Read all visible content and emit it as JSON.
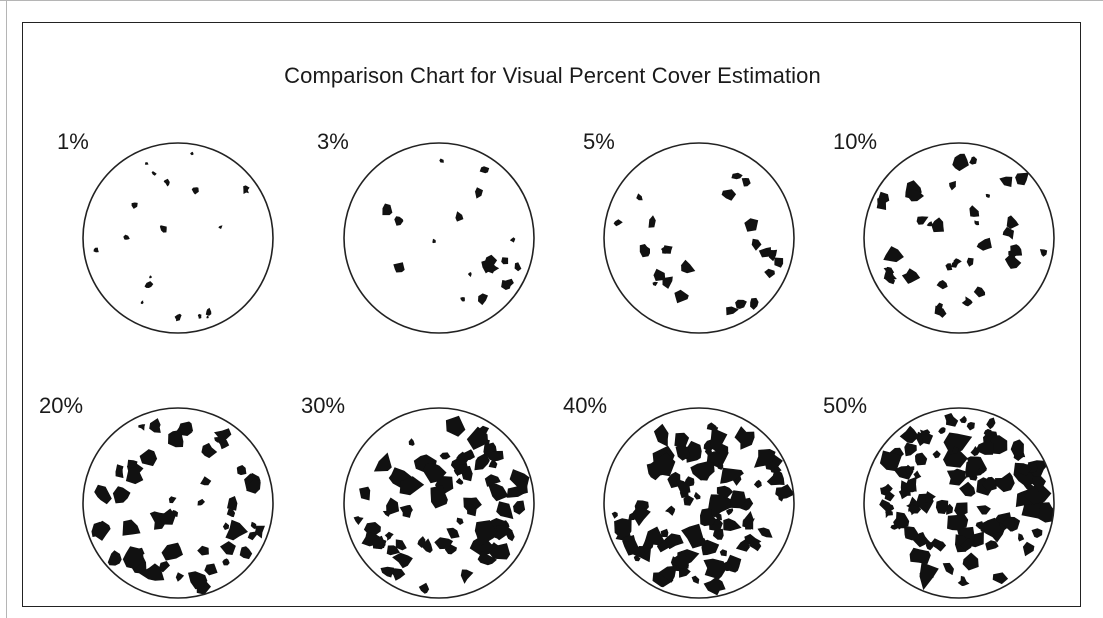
{
  "diagram": {
    "title": "Comparison Chart for Visual Percent Cover Estimation",
    "colors": {
      "patch": "#111111",
      "outline": "#222222",
      "background": "#ffffff"
    },
    "panels": [
      {
        "label": "1%",
        "percent": 1
      },
      {
        "label": "3%",
        "percent": 3
      },
      {
        "label": "5%",
        "percent": 5
      },
      {
        "label": "10%",
        "percent": 10
      },
      {
        "label": "20%",
        "percent": 20
      },
      {
        "label": "30%",
        "percent": 30
      },
      {
        "label": "40%",
        "percent": 40
      },
      {
        "label": "50%",
        "percent": 50
      }
    ]
  }
}
